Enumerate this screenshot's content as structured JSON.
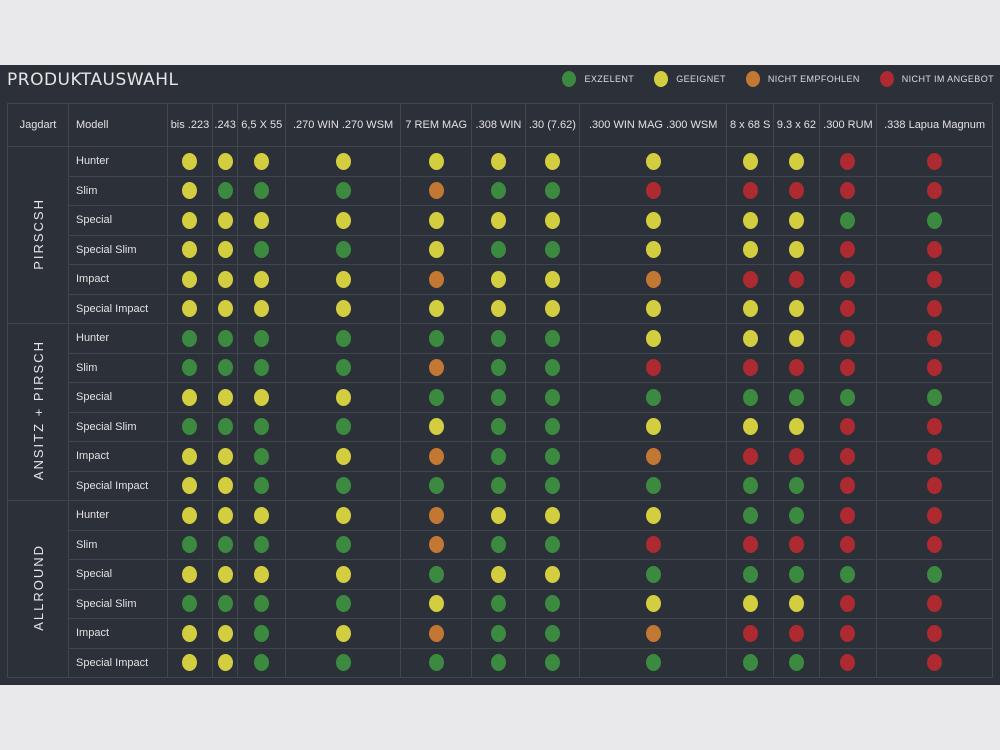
{
  "title": "PRODUKTAUSWAHL",
  "colors": {
    "G": "#3b8a40",
    "Y": "#d3cd40",
    "O": "#c27833",
    "R": "#ad2a30"
  },
  "legend": [
    {
      "key": "G",
      "label": "EXZELENT"
    },
    {
      "key": "Y",
      "label": "GEEIGNET"
    },
    {
      "key": "O",
      "label": "NICHT EMPFOHLEN"
    },
    {
      "key": "R",
      "label": "NICHT IM ANGEBOT"
    }
  ],
  "headers": {
    "jagdart": "Jagdart",
    "modell": "Modell",
    "calibers": [
      "bis .223",
      ".243",
      "6,5 X 55",
      ".270 WIN .270 WSM",
      "7 REM MAG",
      ".308 WIN",
      ".30 (7.62)",
      ".300 WIN MAG .300 WSM",
      "8 x 68 S",
      "9.3 x 62",
      ".300 RUM",
      ".338 Lapua Magnum"
    ]
  },
  "groups": [
    {
      "name": "PIRSCSH",
      "rows": [
        {
          "model": "Hunter",
          "ratings": "YYYYYYYYYYRR"
        },
        {
          "model": "Slim",
          "ratings": "YGGGOGGRRRRR"
        },
        {
          "model": "Special",
          "ratings": "YYYYYYYYYYGG"
        },
        {
          "model": "Special Slim",
          "ratings": "YYGGYGGYYYRR"
        },
        {
          "model": "Impact",
          "ratings": "YYYYOYYORRRR"
        },
        {
          "model": "Special Impact",
          "ratings": "YYYYYYYYYYRR"
        }
      ]
    },
    {
      "name": "ANSITZ + PIRSCH",
      "rows": [
        {
          "model": "Hunter",
          "ratings": "GGGGGGGYYYRR"
        },
        {
          "model": "Slim",
          "ratings": "GGGGOGGRRRRR"
        },
        {
          "model": "Special",
          "ratings": "YYYYGGGGGGGG"
        },
        {
          "model": "Special Slim",
          "ratings": "GGGGYGGYYYRR"
        },
        {
          "model": "Impact",
          "ratings": "YYGYOGGORRRR"
        },
        {
          "model": "Special Impact",
          "ratings": "YYGGGGGGGGRR"
        }
      ]
    },
    {
      "name": "ALLROUND",
      "rows": [
        {
          "model": "Hunter",
          "ratings": "YYYYOYYYGGRR"
        },
        {
          "model": "Slim",
          "ratings": "GGGGOGGRRRRR"
        },
        {
          "model": "Special",
          "ratings": "YYYYGYYGGGGG"
        },
        {
          "model": "Special Slim",
          "ratings": "GGGGYGGYYYRR"
        },
        {
          "model": "Impact",
          "ratings": "YYGYOGGORRRR"
        },
        {
          "model": "Special Impact",
          "ratings": "YYGGGGGGGGRR"
        }
      ]
    }
  ]
}
